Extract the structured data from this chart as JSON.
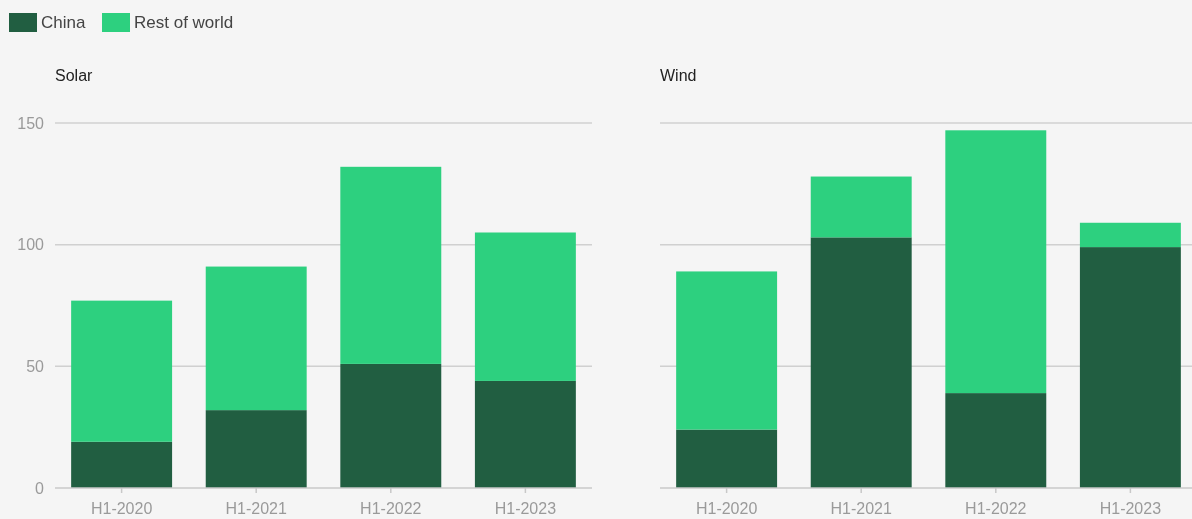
{
  "chart_data": [
    {
      "type": "bar",
      "stacked": true,
      "title": "Solar",
      "categories": [
        "H1-2020",
        "H1-2021",
        "H1-2022",
        "H1-2023"
      ],
      "series": [
        {
          "name": "China",
          "color": "#215e41",
          "values": [
            19,
            32,
            51,
            44
          ]
        },
        {
          "name": "Rest of world",
          "color": "#2dd07f",
          "values": [
            58,
            59,
            81,
            61
          ]
        }
      ],
      "ylim": [
        0,
        150
      ],
      "yticks": [
        0,
        50,
        100,
        150
      ],
      "grid": "y",
      "legend": "top left"
    },
    {
      "type": "bar",
      "stacked": true,
      "title": "Wind",
      "categories": [
        "H1-2020",
        "H1-2021",
        "H1-2022",
        "H1-2023"
      ],
      "series": [
        {
          "color": "#215e41",
          "values": [
            24,
            103,
            39,
            99
          ]
        },
        {
          "color": "#2dd07f",
          "values": [
            65,
            25,
            108,
            10
          ]
        }
      ],
      "ylim": [
        0,
        150
      ],
      "yticks": [
        0,
        50,
        100,
        150
      ],
      "grid": "y",
      "tick_labels": "x"
    }
  ]
}
